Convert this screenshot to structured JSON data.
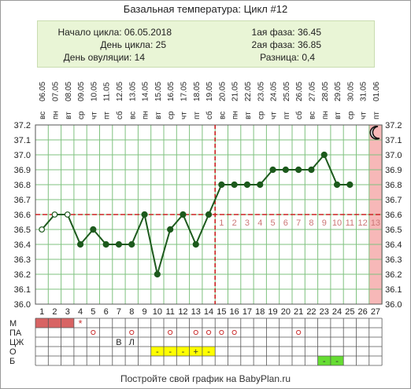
{
  "title": "Базальная температура: Цикл #12",
  "info": {
    "cycle_start": "Начало цикла: 06.05.2018",
    "cycle_day": "День цикла: 25",
    "ovulation_day": "День овуляции: 14",
    "phase1": "1ая фаза: 36.45",
    "phase2": "2ая фаза: 36.85",
    "difference": "Разница: 0,4"
  },
  "footer": "Постройте свой график на BabyPlan.ru",
  "chart_data": {
    "type": "line",
    "ylim": [
      36.0,
      37.2
    ],
    "y_ticks": [
      "37.2",
      "37.1",
      "37.0",
      "36.9",
      "36.8",
      "36.7",
      "36.6",
      "36.5",
      "36.4",
      "36.3",
      "36.2",
      "36.1",
      "36.0"
    ],
    "days": [
      1,
      2,
      3,
      4,
      5,
      6,
      7,
      8,
      9,
      10,
      11,
      12,
      13,
      14,
      15,
      16,
      17,
      18,
      19,
      20,
      21,
      22,
      23,
      24,
      25,
      26,
      27
    ],
    "weekdays": [
      "вс",
      "пн",
      "вт",
      "ср",
      "чт",
      "пт",
      "сб",
      "вс",
      "пн",
      "вт",
      "ср",
      "чт",
      "пт",
      "сб",
      "вс",
      "пн",
      "вт",
      "ср",
      "чт",
      "пт",
      "сб",
      "вс",
      "пн",
      "вт",
      "ср",
      "чт",
      "пт"
    ],
    "dates": [
      "06.05",
      "07.05",
      "08.05",
      "09.05",
      "10.05",
      "11.05",
      "12.05",
      "13.05",
      "14.05",
      "15.05",
      "16.05",
      "17.05",
      "18.05",
      "19.05",
      "20.05",
      "21.05",
      "22.05",
      "23.05",
      "24.05",
      "25.05",
      "26.05",
      "27.05",
      "28.05",
      "29.05",
      "30.05",
      "31.05",
      "01.06"
    ],
    "temperatures": [
      36.5,
      36.6,
      36.6,
      36.4,
      36.5,
      36.4,
      36.4,
      36.4,
      36.6,
      36.2,
      36.5,
      36.6,
      36.4,
      36.6,
      36.8,
      36.8,
      36.8,
      36.8,
      36.9,
      36.9,
      36.9,
      36.9,
      37.0,
      36.8,
      36.8
    ],
    "open_marker_days": [
      1,
      2,
      3
    ],
    "coverline": 36.6,
    "ovulation_day": 14,
    "luteal_day_labels": [
      "1",
      "2",
      "3",
      "4",
      "5",
      "6",
      "7",
      "8",
      "9",
      "10",
      "11",
      "12",
      "13"
    ],
    "highlight_day": 27,
    "moon_icon": "crescent-moon-icon",
    "colors": {
      "line": "#1d5a1d",
      "coverline": "#cc2222",
      "luteal_numbers": "#cc7777",
      "highlight": "#f7b8b8",
      "grid": "#7fc27f",
      "menses": "#d86464",
      "yellow": "#ffff00",
      "green": "#66dd33"
    }
  },
  "bottom_table": {
    "rows": [
      "М",
      "ПА",
      "ЦЖ",
      "О",
      "Б"
    ],
    "menses_days": [
      1,
      2,
      3
    ],
    "star": {
      "day": 4,
      "text": "*"
    },
    "pa_circles": [
      5,
      8,
      11,
      13,
      14,
      15,
      16,
      21
    ],
    "cj_marks": [
      {
        "day": 7,
        "text": "В"
      },
      {
        "day": 8,
        "text": "Л"
      }
    ],
    "o_cells": [
      {
        "day": 10,
        "text": "-"
      },
      {
        "day": 11,
        "text": "-"
      },
      {
        "day": 12,
        "text": "-"
      },
      {
        "day": 13,
        "text": "+"
      },
      {
        "day": 14,
        "text": "-"
      }
    ],
    "b_cells": [
      {
        "day": 23,
        "text": "-"
      },
      {
        "day": 24,
        "text": "-"
      }
    ]
  }
}
